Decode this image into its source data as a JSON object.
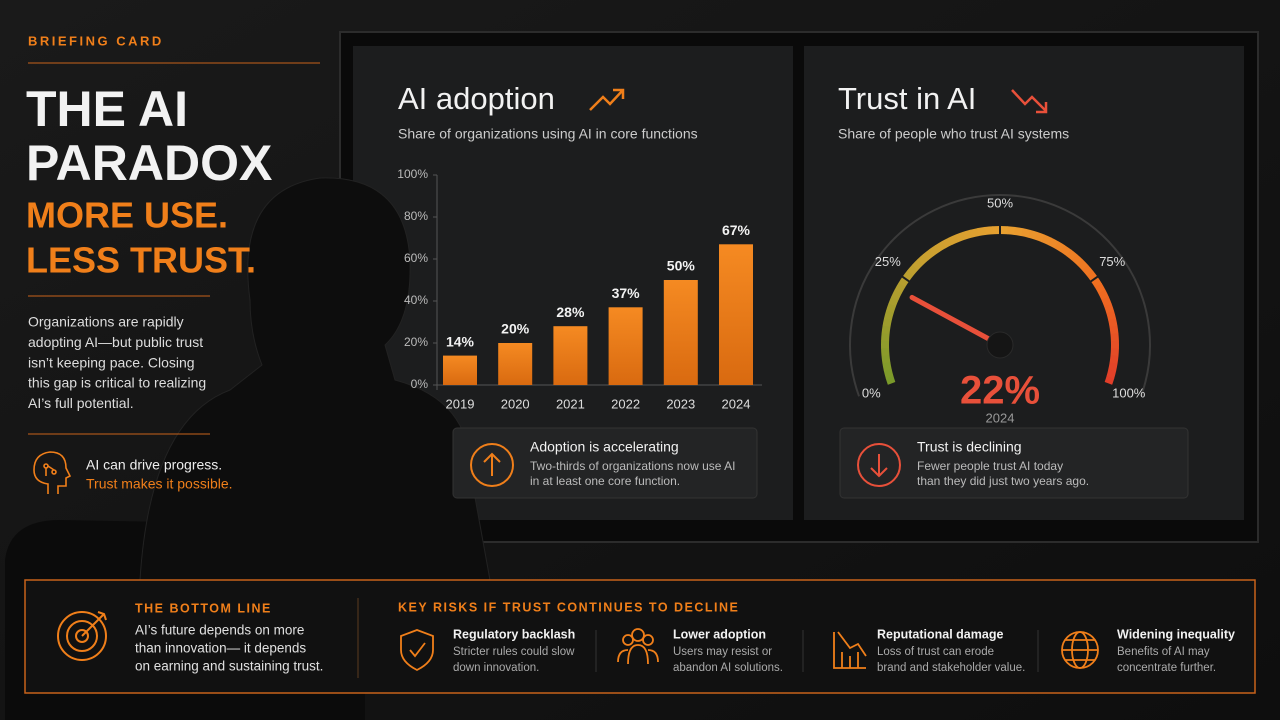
{
  "header": {
    "label": "BRIEFING CARD",
    "title": [
      "THE AI",
      "PARADOX"
    ],
    "tagline": [
      "MORE USE.",
      "LESS TRUST."
    ],
    "body": [
      "Organizations are rapidly",
      "adopting AI—but public trust",
      "isn’t keeping pace. Closing",
      "this gap is critical to realizing",
      "AI’s full potential."
    ],
    "note": [
      "AI can drive progress.",
      "Trust makes it possible."
    ]
  },
  "chart_data": [
    {
      "type": "bar",
      "title": "AI adoption",
      "subtitle": "Share of organizations using AI in core functions",
      "categories": [
        "2019",
        "2020",
        "2021",
        "2022",
        "2023",
        "2024"
      ],
      "values": [
        14,
        20,
        28,
        37,
        50,
        67
      ],
      "value_labels": [
        "14%",
        "20%",
        "28%",
        "37%",
        "50%",
        "67%"
      ],
      "color": "#f07f1a",
      "ylim": [
        0,
        100
      ],
      "yticks": [
        {
          "value": 0,
          "label": "0%"
        },
        {
          "value": 20,
          "label": "20%"
        },
        {
          "value": 40,
          "label": "40%"
        },
        {
          "value": 60,
          "label": "60%"
        },
        {
          "value": 80,
          "label": "80%"
        },
        {
          "value": 100,
          "label": "100%"
        }
      ],
      "note_title": "Adoption is accelerating",
      "note": [
        "Two-thirds of organizations now use AI",
        "in at least one core function."
      ]
    },
    {
      "type": "gauge",
      "title": "Trust in AI",
      "subtitle": "Share of people who trust AI systems",
      "value": 22,
      "value_label": "22%",
      "x_label": "2024",
      "color": "#e8503a",
      "ylim": [
        0,
        100
      ],
      "yticks": [
        {
          "value": 0,
          "label": "0%"
        },
        {
          "value": 25,
          "label": "25%"
        },
        {
          "value": 50,
          "label": "50%"
        },
        {
          "value": 75,
          "label": "75%"
        },
        {
          "value": 100,
          "label": "100%"
        }
      ],
      "note_title": "Trust is declining",
      "note": [
        "Fewer people trust AI today",
        "than they did just two years ago."
      ]
    }
  ],
  "bottom_line": {
    "label": "THE BOTTOM LINE",
    "text": [
      "AI’s future depends on more",
      "than innovation— it depends",
      "on earning and sustaining trust."
    ]
  },
  "risks": {
    "label": "KEY RISKS IF TRUST CONTINUES TO DECLINE",
    "items": [
      {
        "title": "Regulatory backlash",
        "text": [
          "Stricter rules could slow",
          "down innovation."
        ]
      },
      {
        "title": "Lower adoption",
        "text": [
          "Users may resist or",
          "abandon AI solutions."
        ]
      },
      {
        "title": "Reputational damage",
        "text": [
          "Loss of trust can erode",
          "brand and stakeholder value."
        ]
      },
      {
        "title": "Widening inequality",
        "text": [
          "Benefits of AI may",
          "concentrate further."
        ]
      }
    ]
  }
}
